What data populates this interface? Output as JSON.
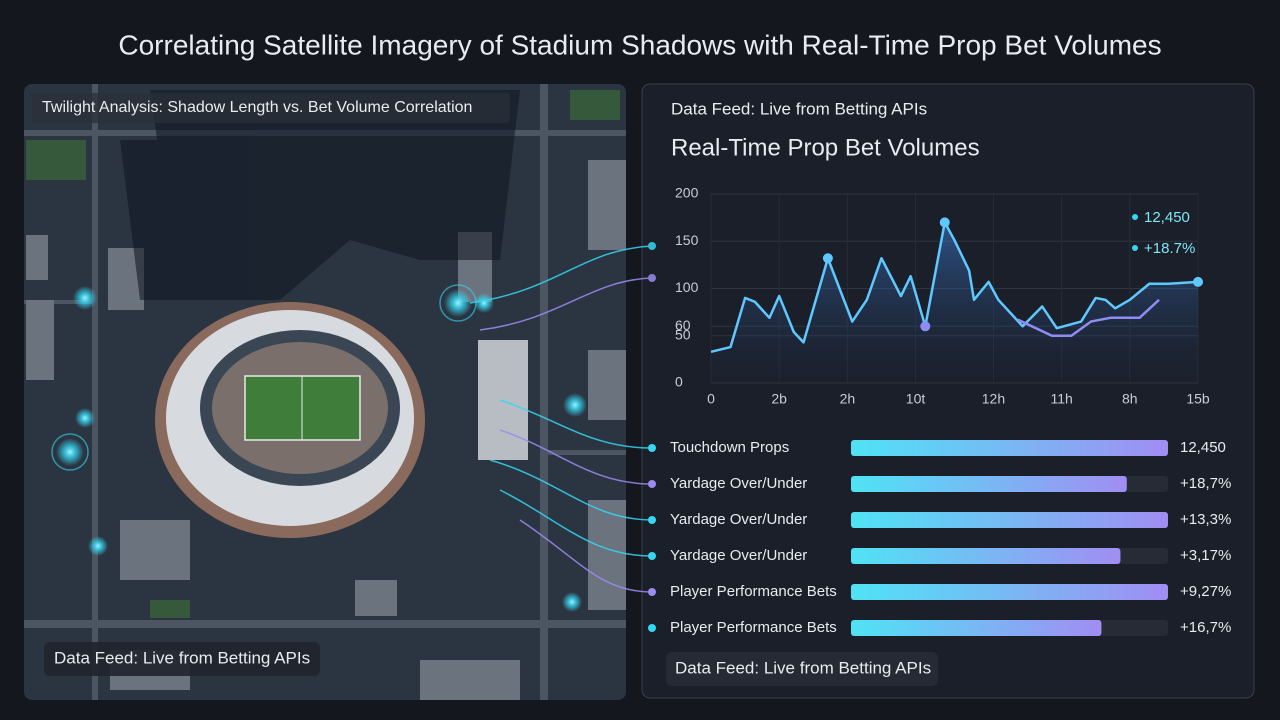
{
  "header": {
    "title": "Correlating Satellite Imagery of Stadium Shadows with Real-Time Prop Bet Volumes"
  },
  "image_panel": {
    "caption": "Twilight Analysis: Shadow Length vs. Bet Volume Correlation",
    "footer": "Data Feed: Live from Betting APIs"
  },
  "chart_panel": {
    "source": "Data Feed: Live from Betting APIs",
    "footer": "Data Feed: Live from Betting APIs"
  },
  "chart_data": [
    {
      "type": "line",
      "title": "Real-Time Prop Bet Volumes",
      "xlim": [
        0,
        100
      ],
      "xticks": [
        0,
        {
          "value": 14,
          "label": "2b"
        },
        {
          "value": 28,
          "label": "2h"
        },
        {
          "value": 42,
          "label": "10t"
        },
        {
          "value": 58,
          "label": "12h"
        },
        {
          "value": 72,
          "label": "11h"
        },
        {
          "value": 86,
          "label": "8h"
        },
        {
          "value": 100,
          "label": "15b"
        }
      ],
      "ylim": [
        0,
        200
      ],
      "yticks": [
        0,
        50,
        60,
        100,
        150,
        200
      ],
      "grid": true,
      "series": [
        {
          "color": "#5fc8ff",
          "x": [
            0,
            4,
            7,
            9,
            12,
            14,
            17,
            19,
            24,
            29,
            32,
            35,
            39,
            41,
            44,
            48,
            50,
            53,
            54,
            57,
            59,
            64,
            68,
            71,
            76,
            79,
            81,
            83,
            86,
            90,
            94,
            100
          ],
          "values": [
            33,
            38,
            90,
            86,
            69,
            92,
            54,
            43,
            132,
            65,
            88,
            132,
            92,
            113,
            60,
            170,
            151,
            119,
            88,
            107,
            88,
            60,
            81,
            58,
            65,
            90,
            88,
            79,
            88,
            105,
            105,
            107
          ]
        },
        {
          "color": "#8f8cf5",
          "x": [
            63,
            70,
            74,
            78,
            82,
            88,
            92
          ],
          "values": [
            67,
            50,
            50,
            65,
            69,
            69,
            88
          ]
        }
      ],
      "annotations": [
        "12,450",
        "+18.7%"
      ]
    },
    {
      "type": "bar",
      "orientation": "horizontal",
      "categories": [
        "Touchdown Props",
        "Yardage Over/Under",
        "Yardage Over/Under",
        "Yardage Over/Under",
        "Player Performance Bets",
        "Player Performance Bets"
      ],
      "values": [
        100,
        87,
        100,
        85,
        100,
        79
      ],
      "xlim": [
        0,
        100
      ],
      "readouts": [
        "12,450",
        "+18,7%",
        "+13,3%",
        "+3,17%",
        "+9,27%",
        "+16,7%"
      ]
    }
  ]
}
